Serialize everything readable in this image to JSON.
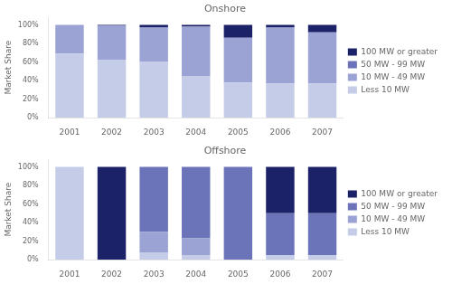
{
  "chart_data": [
    {
      "type": "bar",
      "title": "Onshore",
      "ylabel": "Market Share",
      "categories": [
        "2001",
        "2002",
        "2003",
        "2004",
        "2005",
        "2006",
        "2007"
      ],
      "series": [
        {
          "name": "Less 10 MW",
          "color": "#c5cce8",
          "values": [
            69,
            62,
            60,
            45,
            38,
            37,
            37
          ]
        },
        {
          "name": "10 MW - 49 MW",
          "color": "#9aa3d4",
          "values": [
            31,
            37,
            37,
            53,
            48,
            60,
            55
          ]
        },
        {
          "name": "50 MW - 99 MW",
          "color": "#6b74b8",
          "values": [
            0,
            0,
            0,
            0,
            0,
            0,
            0
          ]
        },
        {
          "name": "100 MW or greater",
          "color": "#1c2268",
          "values": [
            0,
            1,
            3,
            2,
            14,
            3,
            8
          ]
        }
      ],
      "stacked": true,
      "ylim": [
        0,
        108
      ],
      "yticks": [
        {
          "value": 0,
          "label": "0%"
        },
        {
          "value": 20,
          "label": "20%"
        },
        {
          "value": 40,
          "label": "40%"
        },
        {
          "value": 60,
          "label": "60%"
        },
        {
          "value": 80,
          "label": "80%"
        },
        {
          "value": 100,
          "label": "100%"
        }
      ],
      "grid": false,
      "legend": "right"
    },
    {
      "type": "bar",
      "title": "Offshore",
      "ylabel": "Market Share",
      "categories": [
        "2001",
        "2002",
        "2003",
        "2004",
        "2005",
        "2006",
        "2007"
      ],
      "series": [
        {
          "name": "Less 10 MW",
          "color": "#c5cce8",
          "values": [
            100,
            0,
            8,
            5,
            0,
            5,
            5
          ]
        },
        {
          "name": "10 MW - 49 MW",
          "color": "#9aa3d4",
          "values": [
            0,
            0,
            22,
            18,
            0,
            0,
            0
          ]
        },
        {
          "name": "50 MW - 99 MW",
          "color": "#6b74b8",
          "values": [
            0,
            0,
            70,
            77,
            100,
            45,
            45
          ]
        },
        {
          "name": "100 MW or greater",
          "color": "#1c2268",
          "values": [
            0,
            100,
            0,
            0,
            0,
            50,
            50
          ]
        }
      ],
      "stacked": true,
      "ylim": [
        0,
        108
      ],
      "yticks": [
        {
          "value": 0,
          "label": "0%"
        },
        {
          "value": 20,
          "label": "20%"
        },
        {
          "value": 40,
          "label": "40%"
        },
        {
          "value": 60,
          "label": "60%"
        },
        {
          "value": 80,
          "label": "80%"
        },
        {
          "value": 100,
          "label": "100%"
        }
      ],
      "grid": false,
      "legend": "right"
    }
  ]
}
